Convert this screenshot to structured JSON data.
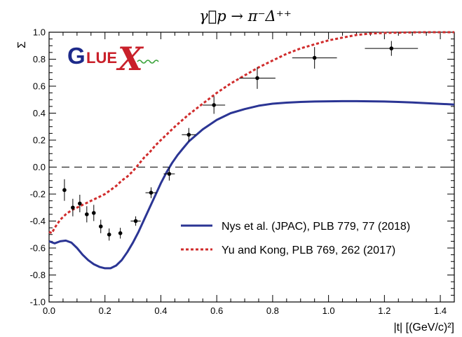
{
  "chart_data": {
    "type": "scatter",
    "title": "γ⃗p → π⁻Δ⁺⁺",
    "xlabel": "|t| [(GeV/c)²]",
    "ylabel": "Σ",
    "xlim": [
      0.0,
      1.45
    ],
    "ylim": [
      -1.0,
      1.0
    ],
    "x_ticks": [
      "0.0",
      "0.2",
      "0.4",
      "0.6",
      "0.8",
      "1.0",
      "1.2",
      "1.4"
    ],
    "y_ticks": [
      "-1.0",
      "-0.8",
      "-0.6",
      "-0.4",
      "-0.2",
      "0.0",
      "0.2",
      "0.4",
      "0.6",
      "0.8",
      "1.0"
    ],
    "zero_line": {
      "y": 0.0,
      "style": "dashed"
    },
    "logo_text": [
      "G",
      "LUE",
      "X"
    ],
    "data_points": [
      {
        "x": 0.055,
        "y": -0.17,
        "xerr": 0.0,
        "yerr": 0.08
      },
      {
        "x": 0.085,
        "y": -0.3,
        "xerr": 0.0,
        "yerr": 0.065
      },
      {
        "x": 0.11,
        "y": -0.27,
        "xerr": 0.0,
        "yerr": 0.065
      },
      {
        "x": 0.135,
        "y": -0.35,
        "xerr": 0.0,
        "yerr": 0.06
      },
      {
        "x": 0.16,
        "y": -0.34,
        "xerr": 0.0,
        "yerr": 0.06
      },
      {
        "x": 0.185,
        "y": -0.44,
        "xerr": 0.0,
        "yerr": 0.05
      },
      {
        "x": 0.215,
        "y": -0.5,
        "xerr": 0.0,
        "yerr": 0.045
      },
      {
        "x": 0.255,
        "y": -0.49,
        "xerr": 0.0,
        "yerr": 0.04
      },
      {
        "x": 0.31,
        "y": -0.4,
        "xerr": 0.018,
        "yerr": 0.035
      },
      {
        "x": 0.365,
        "y": -0.19,
        "xerr": 0.02,
        "yerr": 0.04
      },
      {
        "x": 0.43,
        "y": -0.05,
        "xerr": 0.02,
        "yerr": 0.05
      },
      {
        "x": 0.5,
        "y": 0.24,
        "xerr": 0.025,
        "yerr": 0.05
      },
      {
        "x": 0.59,
        "y": 0.46,
        "xerr": 0.04,
        "yerr": 0.065
      },
      {
        "x": 0.745,
        "y": 0.66,
        "xerr": 0.065,
        "yerr": 0.08
      },
      {
        "x": 0.95,
        "y": 0.81,
        "xerr": 0.08,
        "yerr": 0.08
      },
      {
        "x": 1.225,
        "y": 0.88,
        "xerr": 0.095,
        "yerr": 0.055
      }
    ],
    "series": [
      {
        "name": "Nys et al. (JPAC), PLB 779, 77 (2018)",
        "style": "solid",
        "color": "#2b3594",
        "x": [
          0.0,
          0.02,
          0.04,
          0.06,
          0.08,
          0.1,
          0.12,
          0.14,
          0.16,
          0.18,
          0.2,
          0.22,
          0.24,
          0.26,
          0.28,
          0.3,
          0.32,
          0.34,
          0.36,
          0.38,
          0.4,
          0.42,
          0.44,
          0.46,
          0.48,
          0.5,
          0.55,
          0.6,
          0.65,
          0.7,
          0.75,
          0.8,
          0.85,
          0.9,
          0.95,
          1.0,
          1.05,
          1.1,
          1.15,
          1.2,
          1.25,
          1.3,
          1.35,
          1.4,
          1.45
        ],
        "y": [
          -0.55,
          -0.565,
          -0.55,
          -0.545,
          -0.56,
          -0.6,
          -0.65,
          -0.69,
          -0.72,
          -0.74,
          -0.75,
          -0.75,
          -0.73,
          -0.69,
          -0.63,
          -0.56,
          -0.48,
          -0.39,
          -0.3,
          -0.21,
          -0.12,
          -0.04,
          0.03,
          0.09,
          0.14,
          0.19,
          0.28,
          0.35,
          0.4,
          0.43,
          0.455,
          0.47,
          0.478,
          0.483,
          0.486,
          0.488,
          0.489,
          0.489,
          0.488,
          0.486,
          0.483,
          0.479,
          0.474,
          0.469,
          0.464
        ]
      },
      {
        "name": "Yu and Kong, PLB 769, 262 (2017)",
        "style": "dotted",
        "color": "#d02c2c",
        "x": [
          0.0,
          0.01,
          0.02,
          0.04,
          0.06,
          0.08,
          0.1,
          0.12,
          0.14,
          0.16,
          0.18,
          0.2,
          0.22,
          0.24,
          0.26,
          0.28,
          0.3,
          0.32,
          0.34,
          0.36,
          0.38,
          0.4,
          0.45,
          0.5,
          0.55,
          0.6,
          0.65,
          0.7,
          0.75,
          0.8,
          0.85,
          0.9,
          0.95,
          1.0,
          1.05,
          1.1,
          1.15,
          1.2,
          1.25,
          1.3,
          1.35,
          1.4,
          1.45
        ],
        "y": [
          -0.48,
          -0.49,
          -0.45,
          -0.39,
          -0.35,
          -0.32,
          -0.3,
          -0.28,
          -0.26,
          -0.24,
          -0.22,
          -0.2,
          -0.17,
          -0.14,
          -0.1,
          -0.07,
          -0.03,
          0.02,
          0.07,
          0.11,
          0.16,
          0.2,
          0.3,
          0.39,
          0.47,
          0.55,
          0.62,
          0.68,
          0.74,
          0.79,
          0.84,
          0.88,
          0.91,
          0.94,
          0.96,
          0.98,
          0.99,
          0.995,
          0.997,
          0.999,
          1.0,
          1.0,
          1.0
        ]
      }
    ],
    "legend": {
      "placement": "bottom-right"
    },
    "grid": false
  },
  "colors": {
    "axis": "#000000",
    "logo_blue": "#1d2a8a",
    "logo_red": "#c9202a",
    "logo_green": "#3aa33a"
  }
}
